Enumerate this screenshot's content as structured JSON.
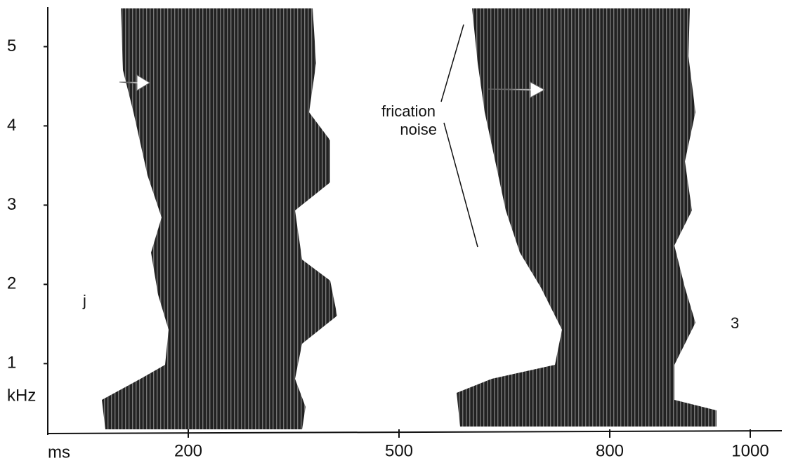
{
  "chart_data": {
    "type": "spectrogram",
    "x_label": "ms",
    "y_label": "kHz",
    "xlim": [
      0,
      1045
    ],
    "xticks": [
      200,
      500,
      800,
      1000
    ],
    "ylim": [
      0.1,
      5.5
    ],
    "yticks": [
      1,
      2,
      3,
      4,
      5
    ],
    "annotations": [
      "j",
      "3",
      "frication",
      "noise"
    ]
  }
}
